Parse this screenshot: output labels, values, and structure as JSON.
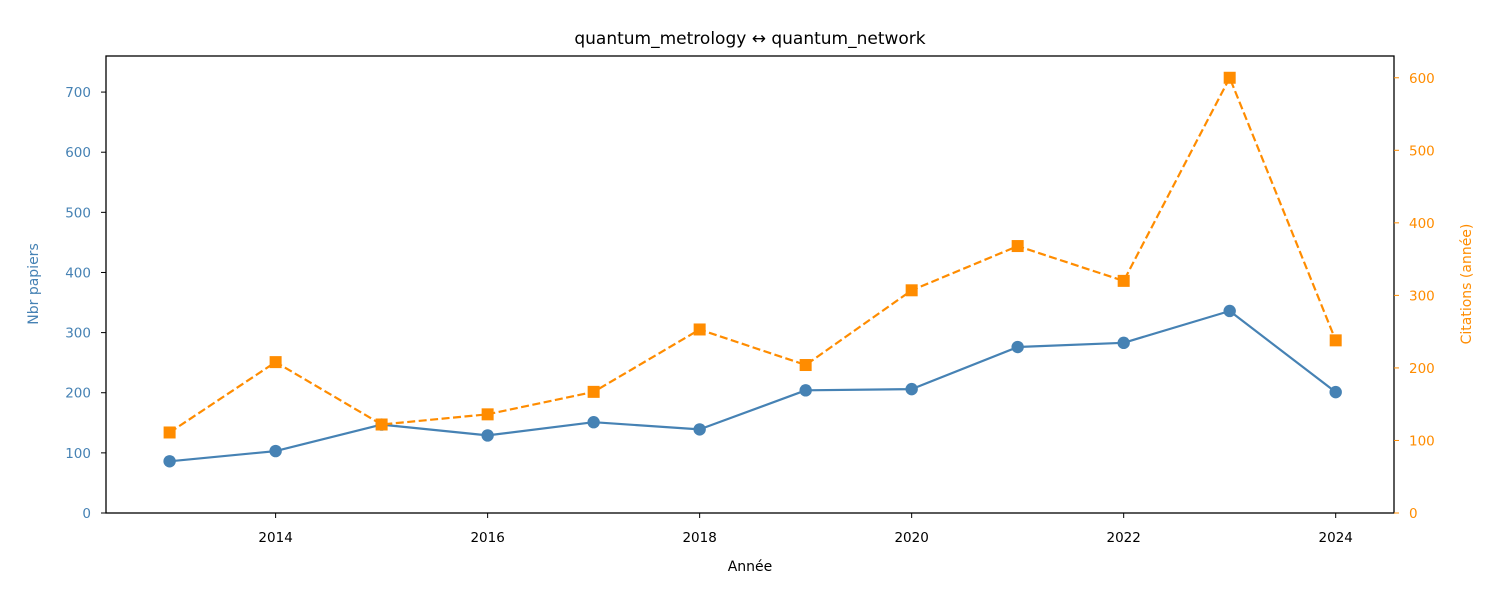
{
  "chart_data": {
    "type": "line",
    "title": "quantum_metrology  ↔  quantum_network",
    "xlabel": "Année",
    "ylabel_left": "Nbr papiers",
    "ylabel_right": "Citations (année)",
    "x": [
      2013,
      2014,
      2015,
      2016,
      2017,
      2018,
      2019,
      2020,
      2021,
      2022,
      2023,
      2024
    ],
    "x_ticks": [
      2014,
      2016,
      2018,
      2020,
      2022,
      2024
    ],
    "xlim": [
      2012.4,
      2024.55
    ],
    "y_left_lim": [
      0,
      760
    ],
    "y_left_ticks": [
      0,
      100,
      200,
      300,
      400,
      500,
      600,
      700
    ],
    "y_right_lim": [
      0,
      630
    ],
    "y_right_ticks": [
      0,
      100,
      200,
      300,
      400,
      500,
      600
    ],
    "grid": false,
    "legend": "none",
    "series": [
      {
        "axis": "left",
        "color": "#4682b4",
        "marker": "circle",
        "line_style": "solid",
        "values": [
          86,
          103,
          147,
          129,
          151,
          139,
          204,
          206,
          276,
          283,
          336,
          201
        ]
      },
      {
        "axis": "right",
        "color": "#ff8c00",
        "marker": "square",
        "line_style": "dashed",
        "values": [
          111,
          208,
          122,
          136,
          167,
          253,
          204,
          307,
          368,
          320,
          600,
          238
        ]
      }
    ]
  }
}
